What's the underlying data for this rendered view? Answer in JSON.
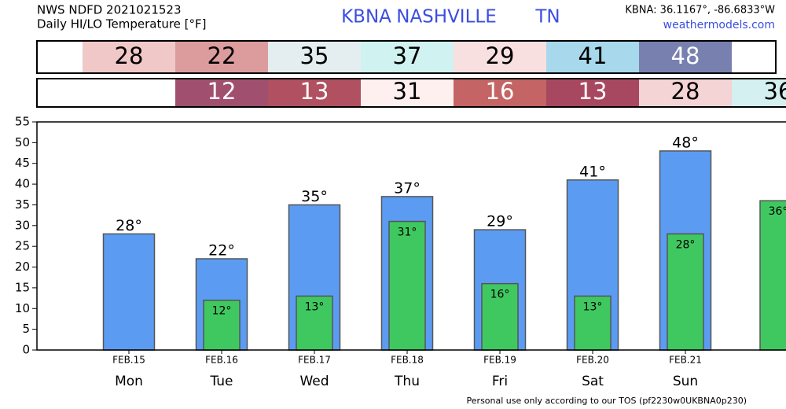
{
  "chart_data": {
    "type": "bar",
    "title": "NWS NDFD 2021021523",
    "subtitle": "Daily HI/LO Temperature [°F]",
    "station": "KBNA",
    "location": "NASHVILLE",
    "state": "TN",
    "coordinates": "KBNA: 36.1167°, -86.6833°W",
    "source": "weathermodels.com",
    "footer": "Personal use only according to our TOS (pf2230w0UKBNA0p230)",
    "categories": [
      "Mon",
      "Tue",
      "Wed",
      "Thu",
      "Fri",
      "Sat",
      "Sun",
      null
    ],
    "dates": [
      "FEB.15",
      "FEB.16",
      "FEB.17",
      "FEB.18",
      "FEB.19",
      "FEB.20",
      "FEB.21",
      null
    ],
    "series": [
      {
        "color": "#5b9cf2",
        "values": [
          28,
          22,
          35,
          37,
          29,
          41,
          48,
          null
        ],
        "value_labels": [
          "28°",
          "22°",
          "35°",
          "37°",
          "29°",
          "41°",
          "48°",
          null
        ],
        "box_colors": [
          "#f0c8c8",
          "#dc9c9e",
          "#e4eef0",
          "#d0f2f0",
          "#f8e0e0",
          "#a8d8ec",
          "#7880b0",
          null
        ]
      },
      {
        "color": "#40c860",
        "values": [
          null,
          12,
          13,
          31,
          16,
          13,
          28,
          36
        ],
        "value_labels": [
          null,
          "12°",
          "13°",
          "31°",
          "16°",
          "13°",
          "28°",
          "36°"
        ],
        "box_colors": [
          null,
          "#a0506e",
          "#b05060",
          "#fff0f0",
          "#c46464",
          "#a84860",
          "#f4d4d4",
          "#d4f0f0"
        ]
      }
    ],
    "ylim": [
      0,
      55
    ],
    "yticks": [
      0,
      5,
      10,
      15,
      20,
      25,
      30,
      35,
      40,
      45,
      50,
      55
    ]
  }
}
